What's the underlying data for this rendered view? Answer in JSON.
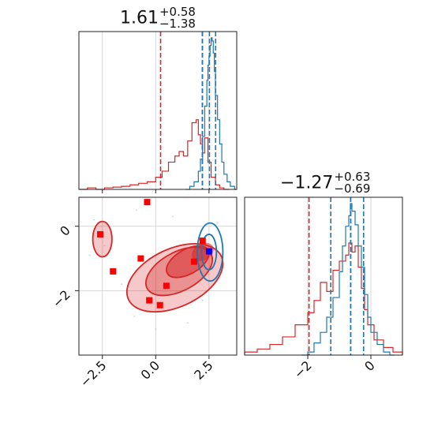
{
  "colors": {
    "red": "#d62728",
    "blue": "#1f77b4",
    "marker_red": "#ff0000",
    "marker_blue": "#0000ff",
    "grid": "#cccccc"
  },
  "titles": {
    "p0": {
      "value": "1.61",
      "plus": "+0.58",
      "minus": "−1.38"
    },
    "p1": {
      "value": "−1.27",
      "plus": "+0.63",
      "minus": "−0.69"
    }
  },
  "chart_data": [
    {
      "type": "histogram",
      "panel": "marginal-param-0",
      "xlim": [
        -3.6,
        3.8
      ],
      "grid": true,
      "series": [
        {
          "color": "#d62728",
          "values": [
            [
              -3.6,
              0.0
            ],
            [
              -3.2,
              0.01
            ],
            [
              -2.8,
              0.0
            ],
            [
              -2.4,
              0.01
            ],
            [
              -2.0,
              0.015
            ],
            [
              -1.6,
              0.02
            ],
            [
              -1.2,
              0.03
            ],
            [
              -0.8,
              0.04
            ],
            [
              -0.4,
              0.05
            ],
            [
              0.0,
              0.08
            ],
            [
              0.3,
              0.12
            ],
            [
              0.6,
              0.18
            ],
            [
              0.9,
              0.22
            ],
            [
              1.1,
              0.25
            ],
            [
              1.3,
              0.22
            ],
            [
              1.5,
              0.32
            ],
            [
              1.7,
              0.44
            ],
            [
              1.9,
              0.46
            ],
            [
              2.0,
              0.36
            ],
            [
              2.1,
              0.3
            ],
            [
              2.2,
              0.24
            ],
            [
              2.3,
              0.34
            ],
            [
              2.45,
              0.18
            ],
            [
              2.6,
              0.08
            ],
            [
              2.8,
              0.03
            ],
            [
              3.0,
              0.01
            ],
            [
              3.2,
              0.0
            ]
          ],
          "lines": [
            0.23,
            2.19
          ]
        },
        {
          "color": "#1f77b4",
          "values": [
            [
              1.4,
              0.0
            ],
            [
              1.6,
              0.02
            ],
            [
              1.8,
              0.05
            ],
            [
              2.0,
              0.12
            ],
            [
              2.1,
              0.2
            ],
            [
              2.2,
              0.35
            ],
            [
              2.3,
              0.55
            ],
            [
              2.4,
              0.72
            ],
            [
              2.45,
              0.82
            ],
            [
              2.5,
              0.88
            ],
            [
              2.55,
              0.95
            ],
            [
              2.6,
              1.0
            ],
            [
              2.65,
              0.98
            ],
            [
              2.7,
              0.9
            ],
            [
              2.75,
              0.78
            ],
            [
              2.8,
              0.62
            ],
            [
              2.9,
              0.46
            ],
            [
              3.0,
              0.3
            ],
            [
              3.1,
              0.18
            ],
            [
              3.2,
              0.1
            ],
            [
              3.35,
              0.05
            ],
            [
              3.5,
              0.02
            ],
            [
              3.7,
              0.0
            ]
          ],
          "lines": [
            2.19,
            2.52,
            2.81
          ]
        }
      ]
    },
    {
      "type": "scatter",
      "panel": "joint-param-0-vs-param-1",
      "xlim": [
        -3.6,
        3.8
      ],
      "ylim": [
        -4.0,
        0.9
      ],
      "xticks": [
        "−2.5",
        "0.0",
        "2.5"
      ],
      "yticks": [
        "0",
        "−2"
      ],
      "grid": true,
      "red_markers": [
        {
          "x": -2.6,
          "y": -0.25
        },
        {
          "x": -0.4,
          "y": 0.75
        },
        {
          "x": -0.7,
          "y": -1.0
        },
        {
          "x": -2.0,
          "y": -1.4
        },
        {
          "x": 0.5,
          "y": -1.85
        },
        {
          "x": -0.3,
          "y": -2.3
        },
        {
          "x": 0.2,
          "y": -2.45
        },
        {
          "x": 1.8,
          "y": -1.1
        },
        {
          "x": 2.2,
          "y": -0.45
        }
      ],
      "blue_markers": [
        {
          "x": 2.5,
          "y": -0.78
        }
      ]
    },
    {
      "type": "histogram",
      "panel": "marginal-param-1",
      "xlim": [
        -4.0,
        1.0
      ],
      "xticks": [
        "−2",
        "0"
      ],
      "grid": true,
      "series": [
        {
          "color": "#d62728",
          "values": [
            [
              -4.0,
              0.02
            ],
            [
              -3.6,
              0.04
            ],
            [
              -3.2,
              0.07
            ],
            [
              -2.8,
              0.12
            ],
            [
              -2.4,
              0.2
            ],
            [
              -2.0,
              0.28
            ],
            [
              -1.8,
              0.36
            ],
            [
              -1.6,
              0.48
            ],
            [
              -1.4,
              0.42
            ],
            [
              -1.2,
              0.56
            ],
            [
              -1.0,
              0.62
            ],
            [
              -0.8,
              0.66
            ],
            [
              -0.7,
              0.74
            ],
            [
              -0.6,
              0.68
            ],
            [
              -0.5,
              0.72
            ],
            [
              -0.4,
              0.58
            ],
            [
              -0.3,
              0.44
            ],
            [
              -0.2,
              0.3
            ],
            [
              -0.1,
              0.2
            ],
            [
              0.1,
              0.1
            ],
            [
              0.4,
              0.05
            ],
            [
              0.7,
              0.02
            ],
            [
              1.0,
              0.0
            ]
          ],
          "lines": [
            -1.96,
            -0.64
          ]
        },
        {
          "color": "#1f77b4",
          "values": [
            [
              -2.2,
              0.0
            ],
            [
              -2.0,
              0.02
            ],
            [
              -1.8,
              0.08
            ],
            [
              -1.6,
              0.15
            ],
            [
              -1.4,
              0.25
            ],
            [
              -1.2,
              0.38
            ],
            [
              -1.0,
              0.55
            ],
            [
              -0.9,
              0.72
            ],
            [
              -0.8,
              0.85
            ],
            [
              -0.7,
              0.92
            ],
            [
              -0.65,
              1.0
            ],
            [
              -0.6,
              0.95
            ],
            [
              -0.5,
              0.86
            ],
            [
              -0.4,
              0.72
            ],
            [
              -0.3,
              0.58
            ],
            [
              -0.2,
              0.4
            ],
            [
              -0.1,
              0.25
            ],
            [
              0.0,
              0.15
            ],
            [
              0.2,
              0.07
            ],
            [
              0.4,
              0.02
            ],
            [
              0.6,
              0.0
            ]
          ],
          "lines": [
            -1.27,
            -0.64,
            -0.23
          ]
        }
      ]
    }
  ]
}
